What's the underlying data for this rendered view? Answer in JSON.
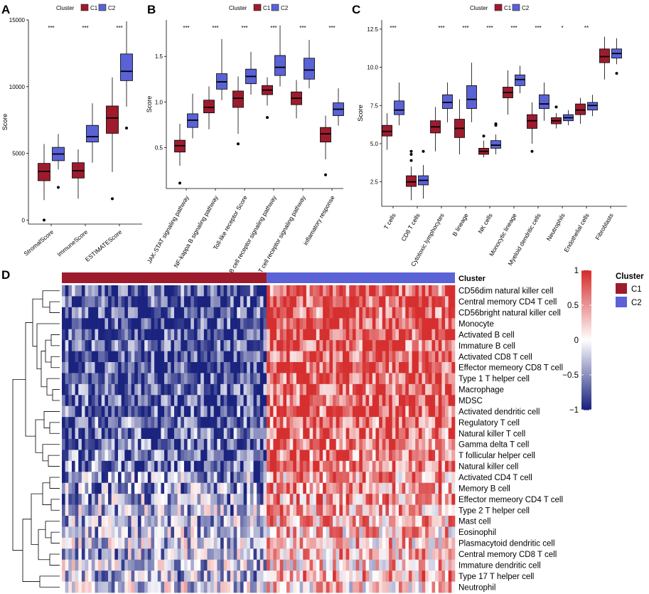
{
  "figure": {
    "panels": [
      "A",
      "B",
      "C",
      "D"
    ],
    "legend_title": "Cluster",
    "legend_labels": [
      "C1",
      "C2"
    ],
    "colors": {
      "C1": "#9e1b2e",
      "C2": "#5a62d6",
      "heat_low": "#1a237e",
      "heat_mid": "#ffffff",
      "heat_high": "#d62f2f"
    }
  },
  "chart_data": [
    {
      "panel": "A",
      "type": "box",
      "ylabel": "Score",
      "ylim": [
        -300,
        15000
      ],
      "yticks": [
        0,
        5000,
        10000,
        15000
      ],
      "categories": [
        "StromalScore",
        "ImmuneScore",
        "ESTIMATEScore"
      ],
      "significance": [
        "***",
        "***",
        "***"
      ],
      "series": [
        {
          "name": "C1",
          "boxes": [
            {
              "whisker_low": 1500,
              "q1": 2950,
              "median": 3650,
              "q3": 4250,
              "whisker_high": 5700,
              "outliers": [
                0
              ]
            },
            {
              "whisker_low": 1600,
              "q1": 3150,
              "median": 3700,
              "q3": 4300,
              "whisker_high": 5300,
              "outliers": []
            },
            {
              "whisker_low": 3600,
              "q1": 6500,
              "median": 7650,
              "q3": 8550,
              "whisker_high": 10700,
              "outliers": [
                1600
              ]
            }
          ]
        },
        {
          "name": "C2",
          "boxes": [
            {
              "whisker_low": 3800,
              "q1": 4450,
              "median": 4950,
              "q3": 5450,
              "whisker_high": 6450,
              "outliers": [
                2450
              ]
            },
            {
              "whisker_low": 4300,
              "q1": 5850,
              "median": 6250,
              "q3": 7100,
              "whisker_high": 8750,
              "outliers": []
            },
            {
              "whisker_low": 8500,
              "q1": 10450,
              "median": 11150,
              "q3": 12450,
              "whisker_high": 14900,
              "outliers": [
                6900
              ]
            }
          ]
        }
      ]
    },
    {
      "panel": "B",
      "type": "box",
      "ylabel": "Score",
      "ylim": [
        0.05,
        1.9
      ],
      "yticks": [
        0.5,
        1.0,
        1.5
      ],
      "ytick_labels": [
        "0.5",
        "1.0",
        "1.5"
      ],
      "categories": [
        "JAK-STAT signaling pathway",
        "NF-kappa B signaling pathway",
        "Toll-like receptor Score",
        "B cell receptor signaling pathway",
        "T cell receptor signaling pathway",
        "inflamatory response"
      ],
      "significance": [
        "***",
        "***",
        "***",
        "***",
        "***",
        "***"
      ],
      "series": [
        {
          "name": "C1",
          "boxes": [
            {
              "whisker_low": 0.3,
              "q1": 0.45,
              "median": 0.52,
              "q3": 0.58,
              "whisker_high": 0.76,
              "outliers": [
                0.11
              ]
            },
            {
              "whisker_low": 0.7,
              "q1": 0.88,
              "median": 0.94,
              "q3": 1.02,
              "whisker_high": 1.17,
              "outliers": []
            },
            {
              "whisker_low": 0.65,
              "q1": 0.94,
              "median": 1.04,
              "q3": 1.12,
              "whisker_high": 1.28,
              "outliers": [
                0.54
              ]
            },
            {
              "whisker_low": 0.96,
              "q1": 1.08,
              "median": 1.13,
              "q3": 1.18,
              "whisker_high": 1.27,
              "outliers": [
                0.83
              ]
            },
            {
              "whisker_low": 0.82,
              "q1": 0.97,
              "median": 1.04,
              "q3": 1.11,
              "whisker_high": 1.24,
              "outliers": []
            },
            {
              "whisker_low": 0.37,
              "q1": 0.56,
              "median": 0.65,
              "q3": 0.72,
              "whisker_high": 0.85,
              "outliers": [
                0.2
              ]
            }
          ]
        },
        {
          "name": "C2",
          "boxes": [
            {
              "whisker_low": 0.6,
              "q1": 0.72,
              "median": 0.8,
              "q3": 0.87,
              "whisker_high": 1.09,
              "outliers": []
            },
            {
              "whisker_low": 1.02,
              "q1": 1.14,
              "median": 1.22,
              "q3": 1.31,
              "whisker_high": 1.69,
              "outliers": []
            },
            {
              "whisker_low": 1.08,
              "q1": 1.2,
              "median": 1.28,
              "q3": 1.36,
              "whisker_high": 1.55,
              "outliers": []
            },
            {
              "whisker_low": 1.17,
              "q1": 1.29,
              "median": 1.38,
              "q3": 1.51,
              "whisker_high": 1.84,
              "outliers": []
            },
            {
              "whisker_low": 1.15,
              "q1": 1.25,
              "median": 1.35,
              "q3": 1.48,
              "whisker_high": 1.68,
              "outliers": []
            },
            {
              "whisker_low": 0.74,
              "q1": 0.85,
              "median": 0.92,
              "q3": 0.99,
              "whisker_high": 1.15,
              "outliers": []
            }
          ]
        }
      ]
    },
    {
      "panel": "C",
      "type": "box",
      "ylabel": "Score",
      "ylim": [
        0.9,
        13.1
      ],
      "yticks": [
        2.5,
        5.0,
        7.5,
        10.0,
        12.5
      ],
      "ytick_labels": [
        "2.5",
        "5.0",
        "7.5",
        "10.0",
        "12.5"
      ],
      "categories": [
        "T cells",
        "CD8 T cells",
        "Cytotoxic lymphocytes",
        "B lineage",
        "NK cells",
        "Monocytic lineage",
        "Myeloid dendritic cells",
        "Neutrophils",
        "Endothelial cells",
        "Fibroblasts"
      ],
      "significance": [
        "***",
        "",
        "***",
        "***",
        "***",
        "***",
        "***",
        "*",
        "**",
        ""
      ],
      "series": [
        {
          "name": "C1",
          "boxes": [
            {
              "whisker_low": 4.6,
              "q1": 5.5,
              "median": 5.8,
              "q3": 6.2,
              "whisker_high": 7.0,
              "outliers": []
            },
            {
              "whisker_low": 1.3,
              "q1": 2.2,
              "median": 2.5,
              "q3": 2.9,
              "whisker_high": 3.5,
              "outliers": [
                3.9,
                4.3,
                4.5
              ]
            },
            {
              "whisker_low": 4.5,
              "q1": 5.7,
              "median": 6.1,
              "q3": 6.5,
              "whisker_high": 7.4,
              "outliers": []
            },
            {
              "whisker_low": 4.3,
              "q1": 5.4,
              "median": 6.0,
              "q3": 6.6,
              "whisker_high": 7.9,
              "outliers": []
            },
            {
              "whisker_low": 4.1,
              "q1": 4.3,
              "median": 4.5,
              "q3": 4.7,
              "whisker_high": 5.2,
              "outliers": [
                5.5
              ]
            },
            {
              "whisker_low": 6.9,
              "q1": 8.0,
              "median": 8.35,
              "q3": 8.7,
              "whisker_high": 9.8,
              "outliers": []
            },
            {
              "whisker_low": 5.0,
              "q1": 6.0,
              "median": 6.5,
              "q3": 6.9,
              "whisker_high": 7.7,
              "outliers": [
                4.5
              ]
            },
            {
              "whisker_low": 6.0,
              "q1": 6.3,
              "median": 6.5,
              "q3": 6.7,
              "whisker_high": 7.0,
              "outliers": [
                7.4
              ]
            },
            {
              "whisker_low": 6.3,
              "q1": 6.9,
              "median": 7.2,
              "q3": 7.6,
              "whisker_high": 8.0,
              "outliers": []
            },
            {
              "whisker_low": 9.2,
              "q1": 10.3,
              "median": 10.7,
              "q3": 11.2,
              "whisker_high": 12.0,
              "outliers": []
            }
          ]
        },
        {
          "name": "C2",
          "boxes": [
            {
              "whisker_low": 6.2,
              "q1": 6.9,
              "median": 7.2,
              "q3": 7.8,
              "whisker_high": 9.0,
              "outliers": []
            },
            {
              "whisker_low": 1.4,
              "q1": 2.3,
              "median": 2.6,
              "q3": 2.9,
              "whisker_high": 3.6,
              "outliers": [
                4.5
              ]
            },
            {
              "whisker_low": 6.4,
              "q1": 7.3,
              "median": 7.7,
              "q3": 8.2,
              "whisker_high": 9.0,
              "outliers": []
            },
            {
              "whisker_low": 6.4,
              "q1": 7.3,
              "median": 7.9,
              "q3": 8.8,
              "whisker_high": 10.3,
              "outliers": []
            },
            {
              "whisker_low": 4.3,
              "q1": 4.7,
              "median": 4.9,
              "q3": 5.2,
              "whisker_high": 5.6,
              "outliers": [
                6.2,
                6.3
              ]
            },
            {
              "whisker_low": 8.3,
              "q1": 8.8,
              "median": 9.2,
              "q3": 9.5,
              "whisker_high": 10.1,
              "outliers": []
            },
            {
              "whisker_low": 6.5,
              "q1": 7.3,
              "median": 7.6,
              "q3": 8.2,
              "whisker_high": 9.0,
              "outliers": []
            },
            {
              "whisker_low": 6.2,
              "q1": 6.5,
              "median": 6.7,
              "q3": 6.9,
              "whisker_high": 7.2,
              "outliers": []
            },
            {
              "whisker_low": 6.8,
              "q1": 7.2,
              "median": 7.5,
              "q3": 7.7,
              "whisker_high": 8.2,
              "outliers": []
            },
            {
              "whisker_low": 10.2,
              "q1": 10.6,
              "median": 10.9,
              "q3": 11.2,
              "whisker_high": 11.9,
              "outliers": [
                9.6
              ]
            }
          ]
        }
      ]
    },
    {
      "panel": "D",
      "type": "heatmap",
      "annotation_label": "Cluster",
      "n_samples_C1": 62,
      "n_samples_C2": 57,
      "rows": [
        "CD56dim natural killer cell",
        "Central memory CD4 T cell",
        "CD56bright natural killer cell",
        "Monocyte",
        "Activated B cell",
        "Immature  B cell",
        "Activated CD8 T cell",
        "Effector memeory CD8 T cell",
        "Type 1 T helper cell",
        "Macrophage",
        "MDSC",
        "Activated dendritic cell",
        "Regulatory T cell",
        "Natural killer T cell",
        "Gamma delta T cell",
        "T follicular helper cell",
        "Natural killer cell",
        "Activated CD4 T cell",
        "Memory B cell",
        "Effector memeory CD4 T cell",
        "Type 2 T helper cell",
        "Mast cell",
        "Eosinophil",
        "Plasmacytoid dendritic cell",
        "Central memory CD8 T cell",
        "Immature dendritic cell",
        "Type 17 T helper cell",
        "Neutrophil"
      ],
      "mean_C1": [
        -0.75,
        -0.8,
        -0.75,
        -0.8,
        -0.8,
        -0.75,
        -0.8,
        -0.8,
        -0.8,
        -0.75,
        -0.75,
        -0.75,
        -0.7,
        -0.7,
        -0.7,
        -0.65,
        -0.65,
        -0.45,
        -0.45,
        -0.4,
        -0.35,
        -0.35,
        -0.3,
        -0.3,
        -0.35,
        -0.25,
        -0.35,
        -0.2
      ],
      "mean_C2": [
        0.75,
        0.8,
        0.75,
        0.8,
        0.8,
        0.75,
        0.8,
        0.8,
        0.8,
        0.75,
        0.8,
        0.75,
        0.7,
        0.7,
        0.7,
        0.65,
        0.65,
        0.45,
        0.45,
        0.4,
        0.35,
        0.35,
        0.3,
        0.3,
        0.35,
        0.25,
        0.4,
        0.2
      ],
      "colorbar_range": [
        -1,
        1
      ],
      "colorbar_ticks": [
        1,
        0.5,
        0,
        -0.5,
        -1
      ],
      "colorbar_tick_labels": [
        "1",
        "0.5",
        "0",
        "−0.5",
        "−1"
      ]
    }
  ]
}
